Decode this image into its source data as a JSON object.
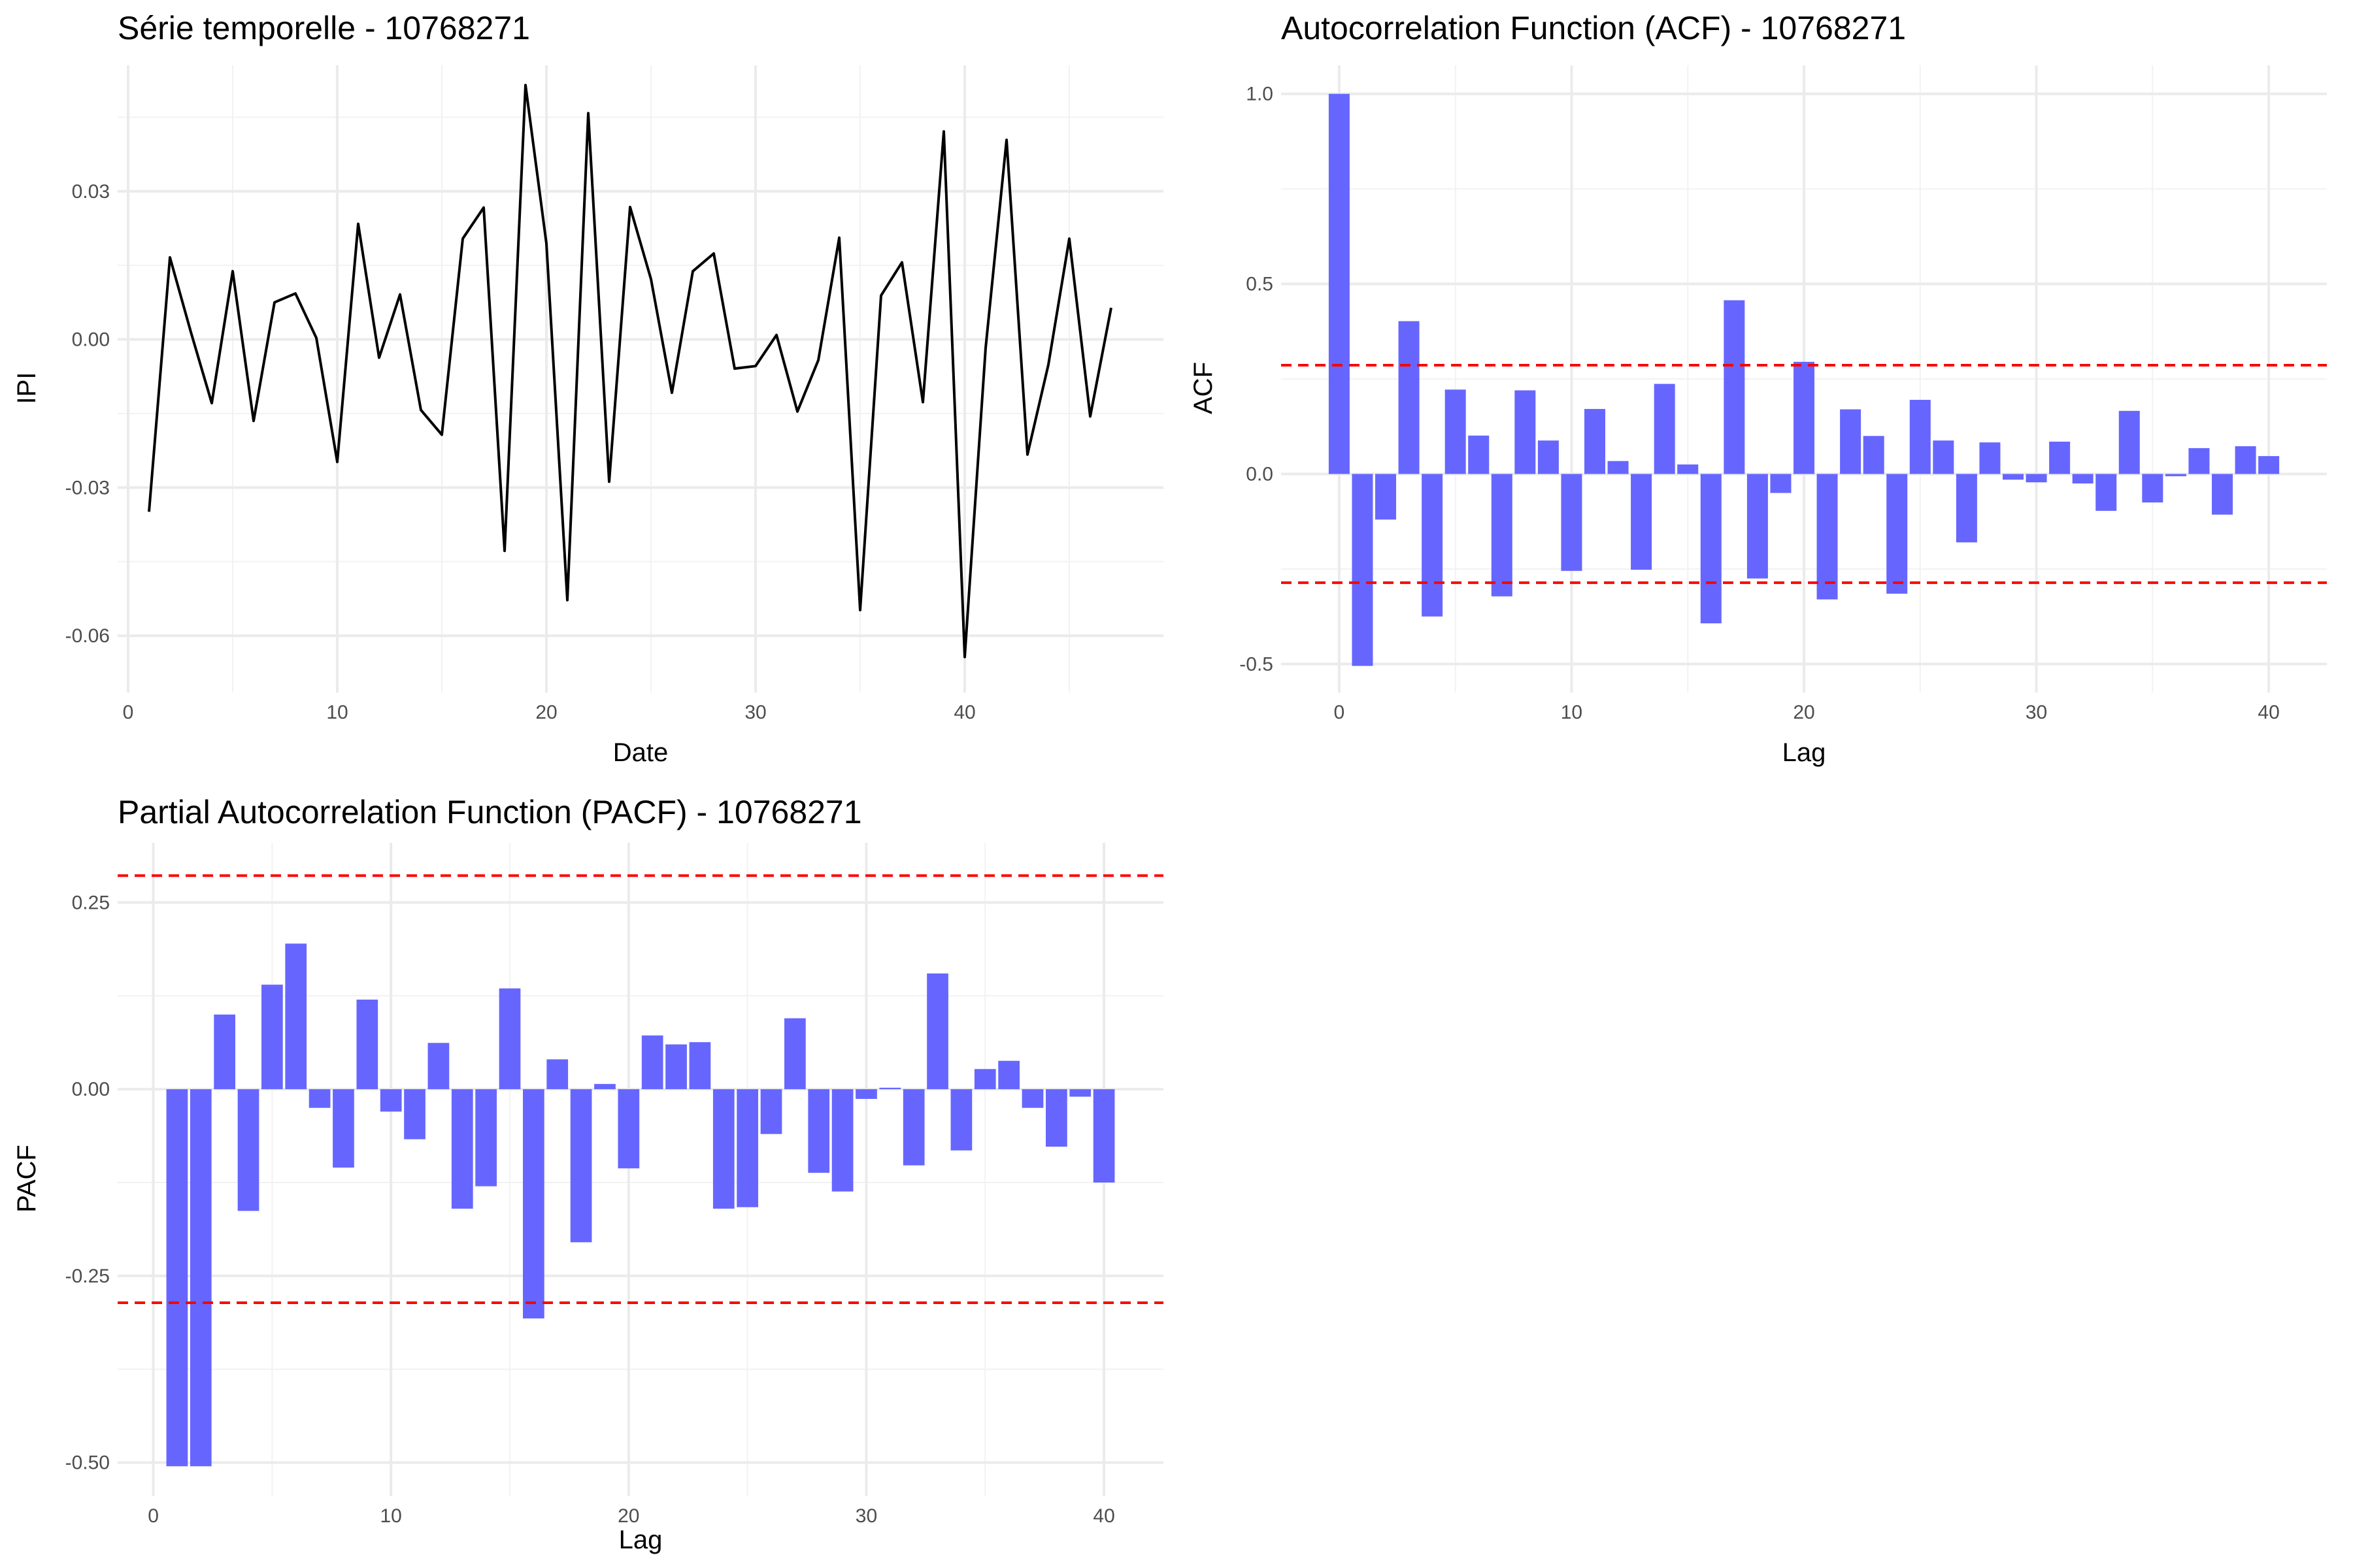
{
  "chart_data": [
    {
      "id": "series",
      "type": "line",
      "title": "Série temporelle - 10768271",
      "xlabel": "Date",
      "ylabel": "IPI",
      "xlim": [
        -0.5,
        49.5
      ],
      "ylim": [
        -0.0715,
        0.0555
      ],
      "x_ticks": [
        0,
        10,
        20,
        30,
        40
      ],
      "x_tick_labels": [
        "0",
        "10",
        "20",
        "30",
        "40"
      ],
      "y_ticks": [
        -0.06,
        -0.03,
        0.0,
        0.03
      ],
      "y_tick_labels": [
        "-0.06",
        "-0.03",
        "0.00",
        "0.03"
      ],
      "grid": true,
      "line_color": "#000000",
      "x": [
        1,
        2,
        3,
        4,
        5,
        6,
        7,
        8,
        9,
        10,
        11,
        12,
        13,
        14,
        15,
        16,
        17,
        18,
        19,
        20,
        21,
        22,
        23,
        24,
        25,
        26,
        27,
        28,
        29,
        30,
        31,
        32,
        33,
        34,
        35,
        36,
        37,
        38,
        39,
        40,
        41,
        42,
        43,
        44,
        45,
        46,
        47
      ],
      "y": [
        -0.0349,
        0.0166,
        0.0015,
        -0.0129,
        0.0138,
        -0.0165,
        0.0075,
        0.0093,
        0.0003,
        -0.0248,
        0.0234,
        -0.0037,
        0.0091,
        -0.0143,
        -0.0193,
        0.0204,
        0.0267,
        -0.0428,
        0.0515,
        0.0194,
        -0.0528,
        0.0458,
        -0.0288,
        0.0268,
        0.0122,
        -0.0108,
        0.0138,
        0.0174,
        -0.0059,
        -0.0054,
        0.0009,
        -0.0146,
        -0.0042,
        0.0206,
        -0.0548,
        0.0089,
        0.0156,
        -0.0127,
        0.0421,
        -0.0643,
        -0.0017,
        0.0404,
        -0.0233,
        -0.0051,
        0.0204,
        -0.0156,
        0.0064
      ]
    },
    {
      "id": "acf",
      "type": "bar",
      "title": "Autocorrelation Function (ACF) - 10768271",
      "xlabel": "Lag",
      "ylabel": "ACF",
      "xlim": [
        -2.5,
        42.5
      ],
      "ylim": [
        -0.575,
        1.075
      ],
      "x_ticks": [
        0,
        10,
        20,
        30,
        40
      ],
      "x_tick_labels": [
        "0",
        "10",
        "20",
        "30",
        "40"
      ],
      "y_ticks": [
        -0.5,
        0.0,
        0.5,
        1.0
      ],
      "y_tick_labels": [
        "-0.5",
        "0.0",
        "0.5",
        "1.0"
      ],
      "grid": true,
      "bar_color": "#6666ff",
      "confidence_bounds": [
        0.286,
        -0.286
      ],
      "bound_color": "#ff0000",
      "x": [
        0,
        1,
        2,
        3,
        4,
        5,
        6,
        7,
        8,
        9,
        10,
        11,
        12,
        13,
        14,
        15,
        16,
        17,
        18,
        19,
        20,
        21,
        22,
        23,
        24,
        25,
        26,
        27,
        28,
        29,
        30,
        31,
        32,
        33,
        34,
        35,
        36,
        37,
        38,
        39,
        40
      ],
      "values": [
        1.0,
        -0.505,
        -0.12,
        0.402,
        -0.375,
        0.222,
        0.101,
        -0.322,
        0.22,
        0.088,
        -0.255,
        0.171,
        0.034,
        -0.252,
        0.237,
        0.025,
        -0.393,
        0.457,
        -0.275,
        -0.05,
        0.295,
        -0.33,
        0.17,
        0.1,
        -0.315,
        0.195,
        0.088,
        -0.18,
        0.083,
        -0.015,
        -0.022,
        0.085,
        -0.025,
        -0.097,
        0.166,
        -0.075,
        -0.006,
        0.068,
        -0.107,
        0.073,
        0.047
      ]
    },
    {
      "id": "pacf",
      "type": "bar",
      "title": "Partial Autocorrelation Function (PACF) - 10768271",
      "xlabel": "Lag",
      "ylabel": "PACF",
      "xlim": [
        -1.5,
        42.5
      ],
      "ylim": [
        -0.545,
        0.33
      ],
      "x_ticks": [
        0,
        10,
        20,
        30,
        40
      ],
      "x_tick_labels": [
        "0",
        "10",
        "20",
        "30",
        "40"
      ],
      "y_ticks": [
        -0.5,
        -0.25,
        0.0,
        0.25
      ],
      "y_tick_labels": [
        "-0.50",
        "-0.25",
        "0.00",
        "0.25"
      ],
      "grid": true,
      "bar_color": "#6666ff",
      "confidence_bounds": [
        0.286,
        -0.286
      ],
      "bound_color": "#ff0000",
      "x": [
        1,
        2,
        3,
        4,
        5,
        6,
        7,
        8,
        9,
        10,
        11,
        12,
        13,
        14,
        15,
        16,
        17,
        18,
        19,
        20,
        21,
        22,
        23,
        24,
        25,
        26,
        27,
        28,
        29,
        30,
        31,
        32,
        33,
        34,
        35,
        36,
        37,
        38,
        39,
        40
      ],
      "values": [
        -0.505,
        -0.505,
        0.1,
        -0.163,
        0.14,
        0.195,
        -0.025,
        -0.105,
        0.12,
        -0.03,
        -0.067,
        0.062,
        -0.16,
        -0.13,
        0.135,
        -0.307,
        0.04,
        -0.205,
        0.007,
        -0.106,
        0.072,
        0.06,
        0.063,
        -0.16,
        -0.158,
        -0.06,
        0.095,
        -0.112,
        -0.137,
        -0.013,
        0.002,
        -0.102,
        0.155,
        -0.082,
        0.027,
        0.038,
        -0.025,
        -0.077,
        -0.01,
        -0.125
      ]
    }
  ]
}
